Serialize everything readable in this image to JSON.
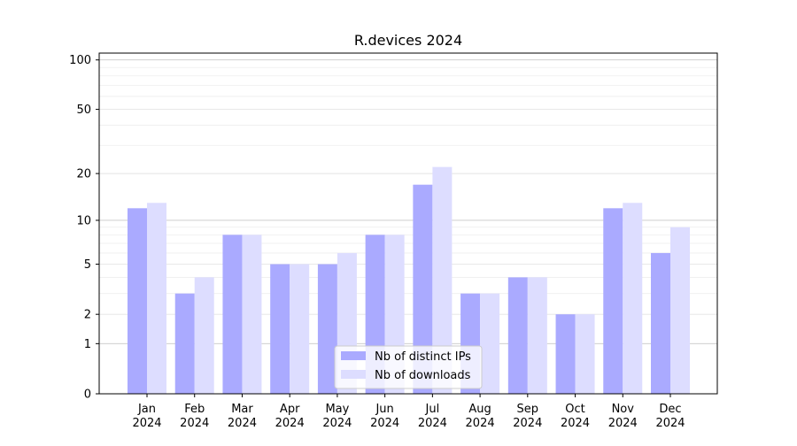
{
  "chart_data": {
    "type": "bar",
    "title": "R.devices 2024",
    "xlabel": "",
    "ylabel": "",
    "y_scale": "log(1+y)",
    "ylim": [
      0,
      110
    ],
    "y_ticks": [
      0,
      1,
      2,
      5,
      10,
      20,
      50,
      100
    ],
    "grid": "horizontal",
    "legend_position": "bottom-center",
    "categories": [
      [
        "Jan",
        "2024"
      ],
      [
        "Feb",
        "2024"
      ],
      [
        "Mar",
        "2024"
      ],
      [
        "Apr",
        "2024"
      ],
      [
        "May",
        "2024"
      ],
      [
        "Jun",
        "2024"
      ],
      [
        "Jul",
        "2024"
      ],
      [
        "Aug",
        "2024"
      ],
      [
        "Sep",
        "2024"
      ],
      [
        "Oct",
        "2024"
      ],
      [
        "Nov",
        "2024"
      ],
      [
        "Dec",
        "2024"
      ]
    ],
    "series": [
      {
        "name": "Nb of distinct IPs",
        "color": "#aaaaff",
        "values": [
          12,
          3,
          8,
          5,
          5,
          8,
          17,
          3,
          4,
          2,
          12,
          6
        ]
      },
      {
        "name": "Nb of downloads",
        "color": "#ddddff",
        "values": [
          13,
          4,
          8,
          5,
          6,
          8,
          22,
          3,
          4,
          2,
          13,
          9
        ]
      }
    ]
  }
}
